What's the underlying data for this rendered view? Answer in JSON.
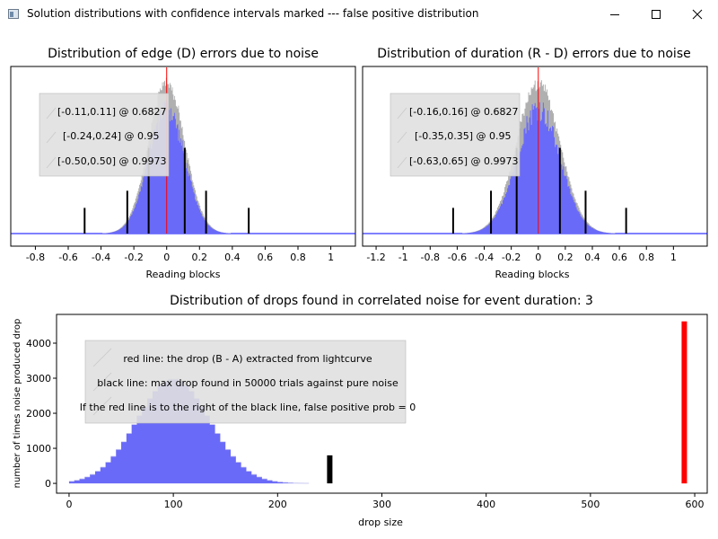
{
  "window": {
    "title": "Solution distributions with confidence intervals marked --- false positive distribution"
  },
  "colors": {
    "hist_fill": "#6a6af8",
    "hist_outline": "#b0b0b0",
    "marker_red": "#ff0000",
    "marker_black": "#000000",
    "legend_bg": "#e0e0e0",
    "baseline_blue": "#0000ff"
  },
  "charts": {
    "edge": {
      "title": "Distribution of edge (D) errors due to noise",
      "xlabel": "Reading blocks",
      "legend": [
        "[-0.11,0.11] @ 0.6827",
        "[-0.24,0.24] @ 0.95",
        "[-0.50,0.50] @ 0.9973"
      ]
    },
    "duration": {
      "title": "Distribution of duration (R - D) errors due to noise",
      "xlabel": "Reading blocks",
      "legend": [
        "[-0.16,0.16] @ 0.6827",
        "[-0.35,0.35] @ 0.95",
        "[-0.63,0.65] @ 0.9973"
      ]
    },
    "drops": {
      "title": "Distribution of drops found in correlated noise for event duration: 3",
      "xlabel": "drop size",
      "ylabel": "number of times noise produced drop",
      "legend": [
        "red line: the drop (B - A) extracted from lightcurve",
        "black line: max drop found in 50000 trials against pure noise",
        "If the red line is to the right of the black line, false positive prob = 0"
      ]
    }
  },
  "chart_data": [
    {
      "type": "histogram",
      "name": "edge",
      "title": "Distribution of edge (D) errors due to noise",
      "xlabel": "Reading blocks",
      "ylabel": "",
      "xlim": [
        -0.95,
        1.15
      ],
      "ylim": [
        0,
        1.12
      ],
      "xticks": [
        -0.8,
        -0.6,
        -0.4,
        -0.2,
        0,
        0.2,
        0.4,
        0.6,
        0.8,
        1
      ],
      "xtick_labels": [
        "-0.8",
        "-0.6",
        "-0.4",
        "-0.2",
        "0",
        "0.2",
        "0.4",
        "0.6",
        "0.8",
        "1"
      ],
      "distribution": {
        "shape": "gaussian",
        "center": 0.0,
        "sigma": 0.11,
        "peak": 1.0
      },
      "red_line": 0.0,
      "interval_lines": [
        {
          "x": -0.11,
          "height": 0.6
        },
        {
          "x": 0.11,
          "height": 0.6
        },
        {
          "x": -0.24,
          "height": 0.3
        },
        {
          "x": 0.24,
          "height": 0.3
        },
        {
          "x": -0.5,
          "height": 0.18
        },
        {
          "x": 0.5,
          "height": 0.18
        }
      ]
    },
    {
      "type": "histogram",
      "name": "duration",
      "title": "Distribution of duration (R - D) errors due to noise",
      "xlabel": "Reading blocks",
      "ylabel": "",
      "xlim": [
        -1.3,
        1.25
      ],
      "ylim": [
        0,
        1.12
      ],
      "xticks": [
        -1.2,
        -1,
        -0.8,
        -0.6,
        -0.4,
        -0.2,
        0,
        0.2,
        0.4,
        0.6,
        0.8,
        1
      ],
      "xtick_labels": [
        "-1.2",
        "-1",
        "-0.8",
        "-0.6",
        "-0.4",
        "-0.2",
        "0",
        "0.2",
        "0.4",
        "0.6",
        "0.8",
        "1"
      ],
      "distribution": {
        "shape": "gaussian",
        "center": 0.0,
        "sigma": 0.16,
        "peak": 1.0
      },
      "red_line": 0.0,
      "interval_lines": [
        {
          "x": -0.16,
          "height": 0.6
        },
        {
          "x": 0.16,
          "height": 0.6
        },
        {
          "x": -0.35,
          "height": 0.3
        },
        {
          "x": 0.35,
          "height": 0.3
        },
        {
          "x": -0.63,
          "height": 0.18
        },
        {
          "x": 0.65,
          "height": 0.18
        }
      ]
    },
    {
      "type": "histogram",
      "name": "drops",
      "title": "Distribution of drops found in correlated noise for event duration: 3",
      "xlabel": "drop size",
      "ylabel": "number of times noise produced drop",
      "xlim": [
        -12,
        612
      ],
      "ylim": [
        -280,
        4820
      ],
      "xticks": [
        0,
        100,
        200,
        300,
        400,
        500,
        600
      ],
      "xtick_labels": [
        "0",
        "100",
        "200",
        "300",
        "400",
        "500",
        "600"
      ],
      "yticks": [
        0,
        1000,
        2000,
        3000,
        4000
      ],
      "ytick_labels": [
        "0",
        "1000",
        "2000",
        "3000",
        "4000"
      ],
      "distribution": {
        "shape": "gaussian",
        "center": 100,
        "sigma": 35,
        "peak": 2980,
        "bin_width": 5,
        "range": [
          0,
          250
        ]
      },
      "black_line": {
        "x": 250,
        "top": 800
      },
      "red_line": {
        "x": 590,
        "top": 4620
      }
    }
  ]
}
